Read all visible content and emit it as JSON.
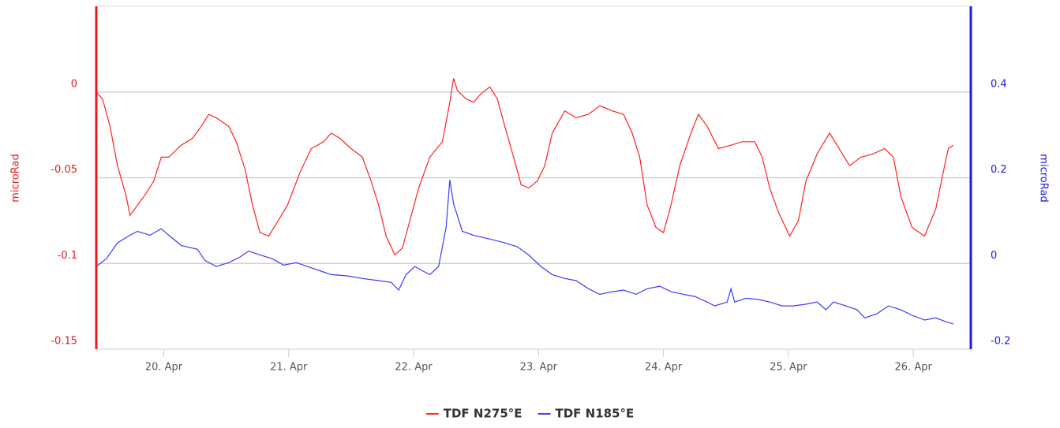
{
  "chart_data": {
    "type": "line",
    "xlim": [
      19.46,
      26.46
    ],
    "xticks": [
      {
        "value": 20,
        "label": "20. Apr"
      },
      {
        "value": 21,
        "label": "21. Apr"
      },
      {
        "value": 22,
        "label": "22. Apr"
      },
      {
        "value": 23,
        "label": "23. Apr"
      },
      {
        "value": 24,
        "label": "24. Apr"
      },
      {
        "value": 25,
        "label": "25. Apr"
      },
      {
        "value": 26,
        "label": "26. Apr"
      }
    ],
    "ylim": [
      -0.15,
      0.05
    ],
    "yticks": [
      -0.15,
      -0.1,
      -0.05,
      0
    ],
    "y2lim": [
      -0.2,
      0.6
    ],
    "y2ticks": [
      -0.2,
      0,
      0.2,
      0.4
    ],
    "ylabel": "microRad",
    "y2label": "microRad",
    "ycolor": "#e81c1c",
    "y2color": "#1a1ae6",
    "grid": true,
    "legend": "bottom",
    "series": [
      {
        "name": "TDF N275°E",
        "color": "#ff2020",
        "x": [
          19.46,
          19.51,
          19.57,
          19.63,
          19.7,
          19.73,
          19.79,
          19.85,
          19.92,
          19.98,
          20.04,
          20.14,
          20.23,
          20.3,
          20.36,
          20.42,
          20.52,
          20.58,
          20.65,
          20.71,
          20.77,
          20.84,
          20.9,
          20.99,
          21.09,
          21.18,
          21.28,
          21.34,
          21.41,
          21.5,
          21.59,
          21.66,
          21.72,
          21.78,
          21.85,
          21.91,
          21.97,
          22.04,
          22.13,
          22.23,
          22.29,
          22.32,
          22.35,
          22.42,
          22.48,
          22.54,
          22.61,
          22.67,
          22.73,
          22.8,
          22.86,
          22.92,
          22.99,
          23.05,
          23.11,
          23.21,
          23.3,
          23.4,
          23.49,
          23.59,
          23.68,
          23.75,
          23.81,
          23.87,
          23.94,
          24.0,
          24.06,
          24.13,
          24.22,
          24.28,
          24.35,
          24.44,
          24.54,
          24.63,
          24.73,
          24.79,
          24.85,
          24.92,
          25.01,
          25.08,
          25.14,
          25.23,
          25.33,
          25.39,
          25.49,
          25.58,
          25.68,
          25.77,
          25.84,
          25.9,
          25.99,
          26.09,
          26.18,
          26.25,
          26.28,
          26.32
        ],
        "values": [
          0,
          -0.004,
          -0.02,
          -0.043,
          -0.061,
          -0.072,
          -0.066,
          -0.06,
          -0.052,
          -0.038,
          -0.038,
          -0.031,
          -0.027,
          -0.02,
          -0.013,
          -0.015,
          -0.02,
          -0.029,
          -0.045,
          -0.066,
          -0.082,
          -0.084,
          -0.077,
          -0.066,
          -0.047,
          -0.033,
          -0.029,
          -0.024,
          -0.027,
          -0.033,
          -0.038,
          -0.052,
          -0.066,
          -0.084,
          -0.095,
          -0.091,
          -0.075,
          -0.056,
          -0.038,
          -0.029,
          -0.006,
          0.008,
          0.001,
          -0.004,
          -0.006,
          -0.001,
          0.003,
          -0.004,
          -0.02,
          -0.038,
          -0.054,
          -0.056,
          -0.052,
          -0.043,
          -0.024,
          -0.011,
          -0.015,
          -0.013,
          -0.008,
          -0.011,
          -0.013,
          -0.024,
          -0.038,
          -0.066,
          -0.079,
          -0.082,
          -0.066,
          -0.043,
          -0.024,
          -0.013,
          -0.02,
          -0.033,
          -0.031,
          -0.029,
          -0.029,
          -0.038,
          -0.056,
          -0.07,
          -0.084,
          -0.075,
          -0.052,
          -0.036,
          -0.024,
          -0.031,
          -0.043,
          -0.038,
          -0.036,
          -0.033,
          -0.038,
          -0.061,
          -0.079,
          -0.084,
          -0.068,
          -0.043,
          -0.033,
          -0.031
        ]
      },
      {
        "name": "TDF N185°E",
        "color": "#3a3aff",
        "axis": "y2",
        "x": [
          19.46,
          19.54,
          19.63,
          19.73,
          19.79,
          19.89,
          19.98,
          20.04,
          20.14,
          20.27,
          20.33,
          20.42,
          20.52,
          20.61,
          20.68,
          20.77,
          20.87,
          20.96,
          21.06,
          21.15,
          21.25,
          21.34,
          21.47,
          21.59,
          21.72,
          21.82,
          21.88,
          21.94,
          22.01,
          22.07,
          22.13,
          22.2,
          22.26,
          22.29,
          22.32,
          22.39,
          22.48,
          22.61,
          22.73,
          22.83,
          22.92,
          23.02,
          23.11,
          23.21,
          23.3,
          23.4,
          23.49,
          23.59,
          23.68,
          23.78,
          23.87,
          23.97,
          24.06,
          24.16,
          24.25,
          24.35,
          24.41,
          24.51,
          24.54,
          24.57,
          24.66,
          24.76,
          24.85,
          24.95,
          25.04,
          25.14,
          25.23,
          25.3,
          25.36,
          25.46,
          25.55,
          25.61,
          25.71,
          25.8,
          25.9,
          25.99,
          26.09,
          26.18,
          26.26,
          26.32
        ],
        "values": [
          -0.007,
          0.011,
          0.048,
          0.066,
          0.075,
          0.066,
          0.081,
          0.066,
          0.042,
          0.033,
          0.007,
          -0.007,
          0.002,
          0.015,
          0.029,
          0.02,
          0.011,
          -0.004,
          0.002,
          -0.007,
          -0.017,
          -0.026,
          -0.029,
          -0.035,
          -0.04,
          -0.044,
          -0.062,
          -0.026,
          -0.007,
          -0.017,
          -0.026,
          -0.007,
          0.084,
          0.195,
          0.139,
          0.075,
          0.066,
          0.057,
          0.048,
          0.039,
          0.02,
          -0.007,
          -0.026,
          -0.035,
          -0.04,
          -0.059,
          -0.072,
          -0.066,
          -0.062,
          -0.072,
          -0.059,
          -0.053,
          -0.066,
          -0.072,
          -0.077,
          -0.09,
          -0.099,
          -0.09,
          -0.059,
          -0.09,
          -0.081,
          -0.084,
          -0.09,
          -0.099,
          -0.099,
          -0.095,
          -0.09,
          -0.108,
          -0.09,
          -0.099,
          -0.108,
          -0.127,
          -0.117,
          -0.099,
          -0.108,
          -0.121,
          -0.132,
          -0.127,
          -0.136,
          -0.141
        ]
      }
    ]
  }
}
